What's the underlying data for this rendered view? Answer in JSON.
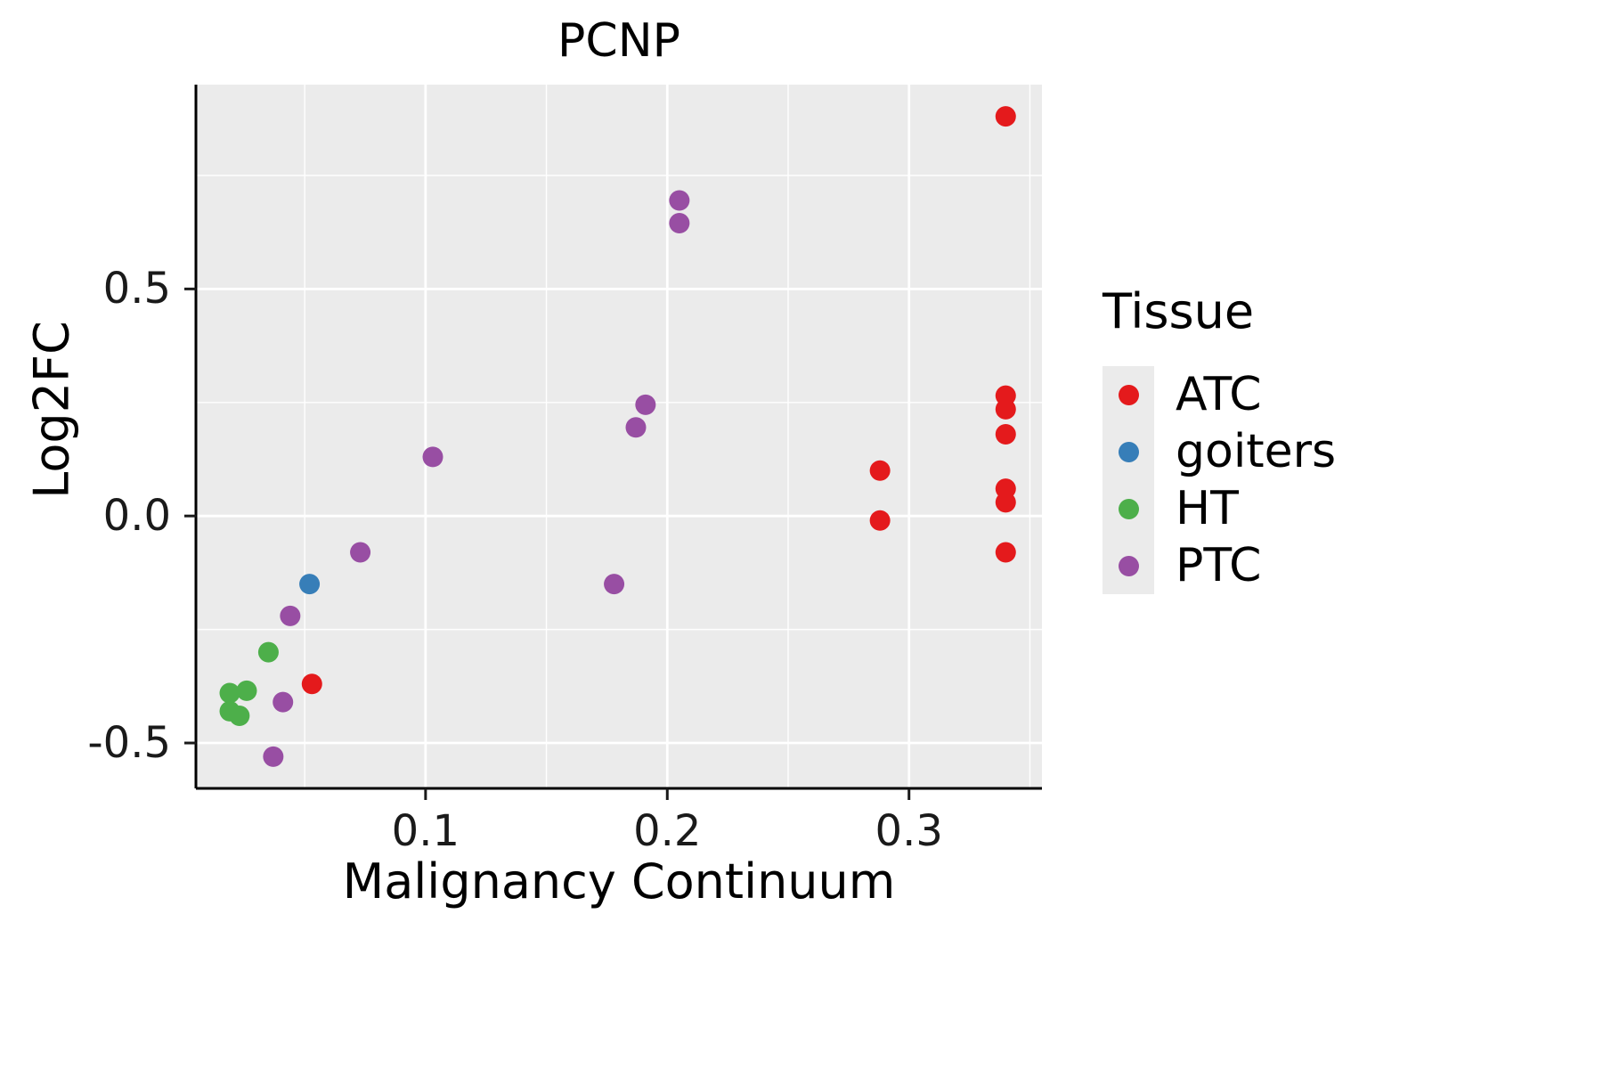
{
  "chart_data": {
    "type": "scatter",
    "title": "PCNP",
    "xlabel": "Malignancy Continuum",
    "ylabel": "Log2FC",
    "xlim": [
      0.005,
      0.355
    ],
    "ylim": [
      -0.6,
      0.95
    ],
    "x_ticks": [
      {
        "value": 0.1,
        "label": "0.1"
      },
      {
        "value": 0.2,
        "label": "0.2"
      },
      {
        "value": 0.3,
        "label": "0.3"
      }
    ],
    "y_ticks": [
      {
        "value": 0.5,
        "label": "0.5"
      },
      {
        "value": 0.0,
        "label": "0.0"
      },
      {
        "value": -0.5,
        "label": "-0.5"
      }
    ],
    "x_minor_ticks": [
      0.05,
      0.15,
      0.25,
      0.35
    ],
    "y_minor_ticks": [
      0.75,
      0.25,
      -0.25
    ],
    "legend": {
      "title": "Tissue",
      "position": "right"
    },
    "series": [
      {
        "name": "ATC",
        "color": "#E41A1C",
        "points": [
          [
            0.34,
            0.88
          ],
          [
            0.34,
            0.265
          ],
          [
            0.34,
            0.235
          ],
          [
            0.34,
            0.18
          ],
          [
            0.34,
            0.06
          ],
          [
            0.34,
            0.03
          ],
          [
            0.34,
            -0.08
          ],
          [
            0.288,
            0.1
          ],
          [
            0.288,
            -0.01
          ],
          [
            0.053,
            -0.37
          ]
        ]
      },
      {
        "name": "goiters",
        "color": "#377EB8",
        "points": [
          [
            0.052,
            -0.15
          ]
        ]
      },
      {
        "name": "HT",
        "color": "#4DAF4A",
        "points": [
          [
            0.035,
            -0.3
          ],
          [
            0.019,
            -0.39
          ],
          [
            0.026,
            -0.385
          ],
          [
            0.019,
            -0.43
          ],
          [
            0.023,
            -0.44
          ]
        ]
      },
      {
        "name": "PTC",
        "color": "#984EA3",
        "points": [
          [
            0.205,
            0.695
          ],
          [
            0.205,
            0.645
          ],
          [
            0.191,
            0.245
          ],
          [
            0.187,
            0.195
          ],
          [
            0.103,
            0.13
          ],
          [
            0.178,
            -0.15
          ],
          [
            0.073,
            -0.08
          ],
          [
            0.044,
            -0.22
          ],
          [
            0.041,
            -0.41
          ],
          [
            0.037,
            -0.53
          ]
        ]
      }
    ],
    "style": {
      "panel_bg": "#EBEBEB",
      "grid_color": "#FFFFFF",
      "axis_color": "#000000",
      "tick_color": "#1a1a1a",
      "point_radius": 11.5
    }
  }
}
